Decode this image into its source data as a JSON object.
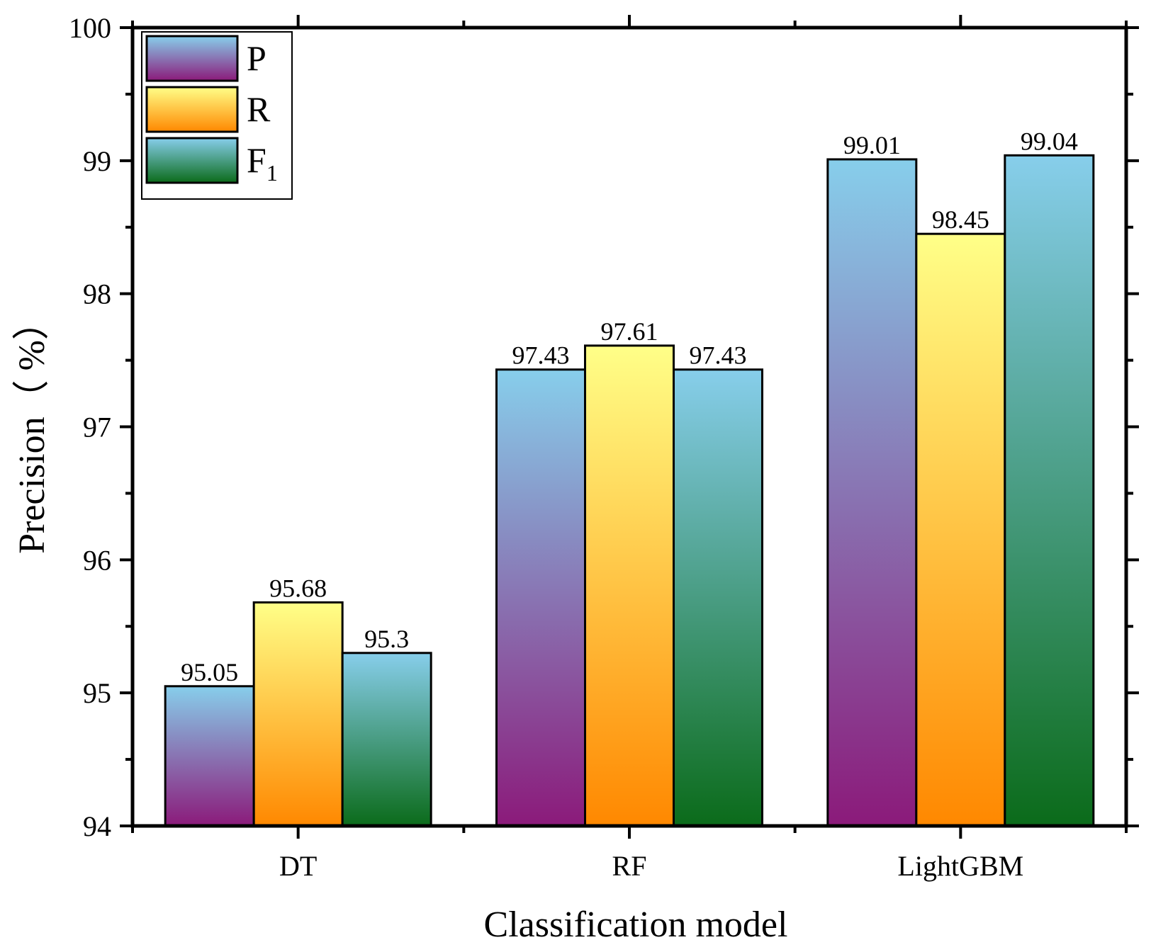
{
  "chart_data": {
    "type": "bar",
    "xlabel": "Classification model",
    "ylabel": "Precision（ %）",
    "ylim": [
      94,
      100
    ],
    "yticks": [
      "94",
      "95",
      "96",
      "97",
      "98",
      "99",
      "100"
    ],
    "categories": [
      "DT",
      "RF",
      "LightGBM"
    ],
    "series": [
      {
        "name": "P",
        "name_sub": "",
        "values": [
          95.05,
          97.43,
          99.01
        ],
        "labels": [
          "95.05",
          "97.43",
          "99.01"
        ],
        "gradient": [
          "#87CEEB",
          "#8B1A7A"
        ]
      },
      {
        "name": "R",
        "name_sub": "",
        "values": [
          95.68,
          97.61,
          98.45
        ],
        "labels": [
          "95.68",
          "97.61",
          "98.45"
        ],
        "gradient": [
          "#FFFF88",
          "#FF8800"
        ]
      },
      {
        "name": "F",
        "name_sub": "1",
        "values": [
          95.3,
          97.43,
          99.04
        ],
        "labels": [
          "95.3",
          "97.43",
          "99.04"
        ],
        "gradient": [
          "#87CEEB",
          "#0B6B1A"
        ]
      }
    ],
    "legend_position": "top-left",
    "grid": false
  }
}
